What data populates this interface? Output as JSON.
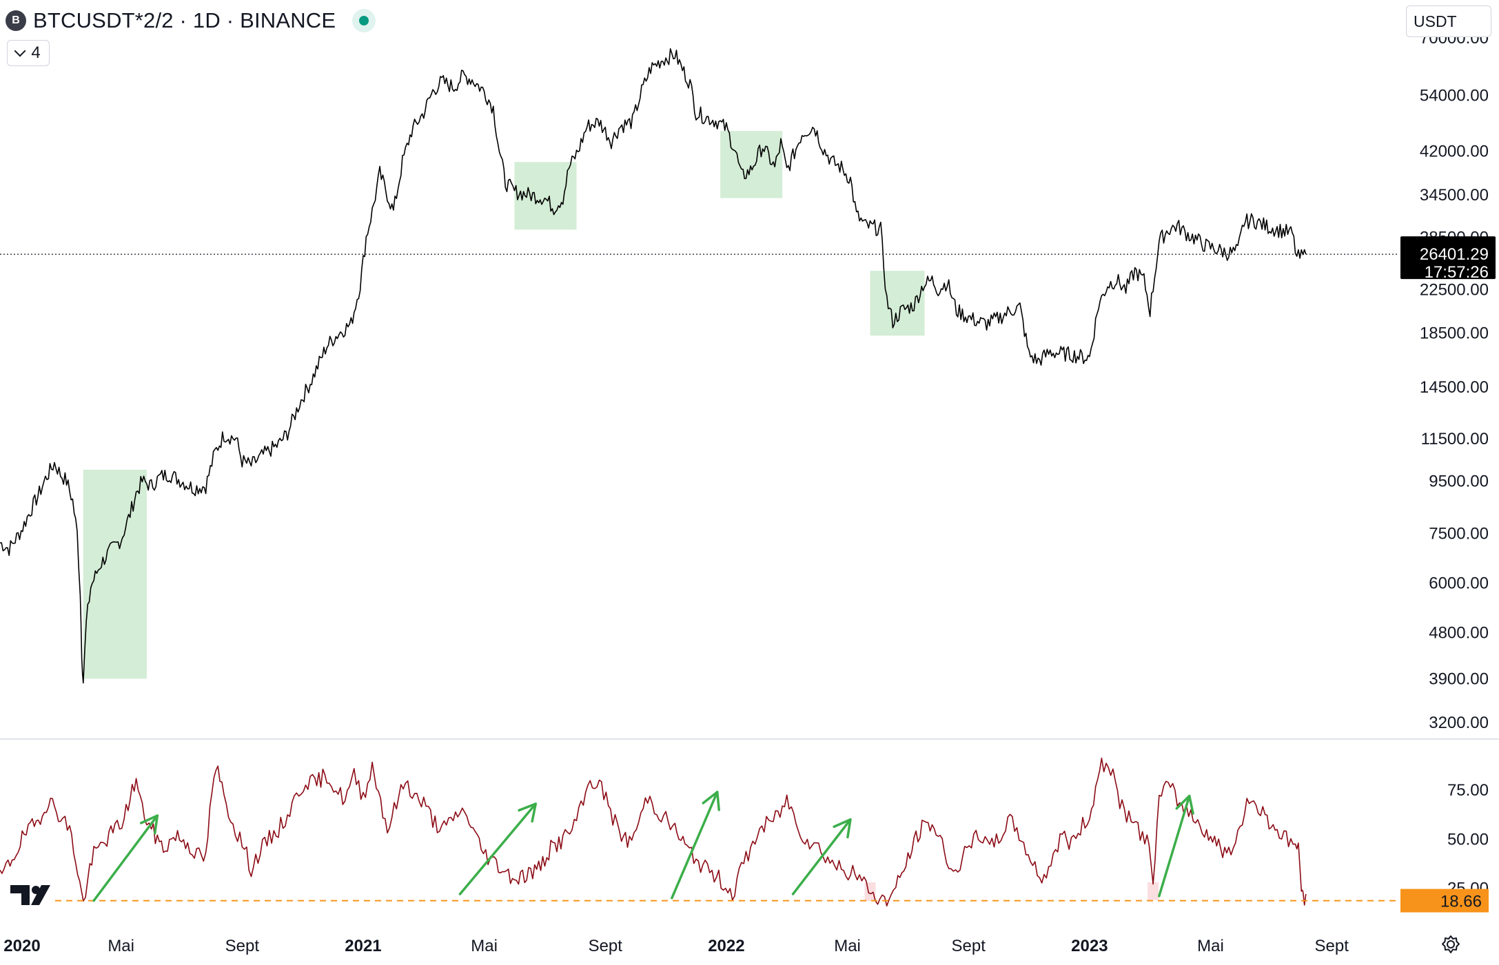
{
  "header": {
    "symbol_badge": "B",
    "title": "BTCUSDT*2/2 · 1D · BINANCE",
    "indicator_count": "4",
    "currency": "USDT"
  },
  "chart_data": [
    {
      "type": "line",
      "title": "BTCUSDT*2/2 · 1D · BINANCE",
      "scale": "log",
      "ylim": [
        3000,
        78000
      ],
      "y_ticks": [
        "70000.00",
        "54000.00",
        "42000.00",
        "34500.00",
        "28500.00",
        "22500.00",
        "18500.00",
        "14500.00",
        "11500.00",
        "9500.00",
        "7500.00",
        "6000.00",
        "4800.00",
        "3900.00",
        "3200.00"
      ],
      "x_ticks": [
        {
          "label": "2020",
          "year": true
        },
        {
          "label": "Mai",
          "year": false
        },
        {
          "label": "Sept",
          "year": false
        },
        {
          "label": "2021",
          "year": true
        },
        {
          "label": "Mai",
          "year": false
        },
        {
          "label": "Sept",
          "year": false
        },
        {
          "label": "2022",
          "year": true
        },
        {
          "label": "Mai",
          "year": false
        },
        {
          "label": "Sept",
          "year": false
        },
        {
          "label": "2023",
          "year": true
        },
        {
          "label": "Mai",
          "year": false
        },
        {
          "label": "Sept",
          "year": false
        }
      ],
      "x_tick_months": [
        0,
        4,
        8,
        12,
        16,
        20,
        24,
        28,
        32,
        36,
        40,
        44
      ],
      "x_domain_months": [
        0,
        46
      ],
      "last_price": "26401.29",
      "last_price_value": 26401.29,
      "countdown": "17:57:26",
      "price_path": [
        [
          0,
          7200
        ],
        [
          0.3,
          7000
        ],
        [
          0.7,
          7600
        ],
        [
          1,
          8300
        ],
        [
          1.3,
          9000
        ],
        [
          1.5,
          9600
        ],
        [
          1.8,
          10300
        ],
        [
          2,
          9800
        ],
        [
          2.2,
          9500
        ],
        [
          2.4,
          8700
        ],
        [
          2.55,
          7500
        ],
        [
          2.65,
          5800
        ],
        [
          2.7,
          4400
        ],
        [
          2.75,
          3850
        ],
        [
          2.85,
          5000
        ],
        [
          3,
          5900
        ],
        [
          3.3,
          6500
        ],
        [
          3.6,
          6900
        ],
        [
          4,
          7300
        ],
        [
          4.3,
          8200
        ],
        [
          4.5,
          9000
        ],
        [
          4.7,
          9500
        ],
        [
          5,
          9300
        ],
        [
          5.3,
          9700
        ],
        [
          5.6,
          9800
        ],
        [
          6,
          9500
        ],
        [
          6.4,
          9200
        ],
        [
          6.8,
          9300
        ],
        [
          7.1,
          10800
        ],
        [
          7.4,
          11700
        ],
        [
          7.8,
          11500
        ],
        [
          8,
          10400
        ],
        [
          8.3,
          10200
        ],
        [
          8.7,
          10700
        ],
        [
          9.2,
          11200
        ],
        [
          9.5,
          11800
        ],
        [
          9.9,
          13500
        ],
        [
          10.3,
          15000
        ],
        [
          10.8,
          17500
        ],
        [
          11.2,
          18500
        ],
        [
          11.6,
          19300
        ],
        [
          11.9,
          23000
        ],
        [
          12.1,
          28500
        ],
        [
          12.3,
          32000
        ],
        [
          12.55,
          38000
        ],
        [
          12.8,
          34500
        ],
        [
          13,
          32000
        ],
        [
          13.3,
          40000
        ],
        [
          13.6,
          46000
        ],
        [
          14,
          50000
        ],
        [
          14.3,
          55000
        ],
        [
          14.6,
          57500
        ],
        [
          15,
          56000
        ],
        [
          15.3,
          59000
        ],
        [
          15.6,
          58000
        ],
        [
          16,
          55000
        ],
        [
          16.3,
          51000
        ],
        [
          16.5,
          42000
        ],
        [
          16.7,
          36500
        ],
        [
          17,
          35000
        ],
        [
          17.5,
          34500
        ],
        [
          18,
          34000
        ],
        [
          18.3,
          32500
        ],
        [
          18.6,
          34000
        ],
        [
          18.8,
          39000
        ],
        [
          19.1,
          42000
        ],
        [
          19.4,
          47000
        ],
        [
          19.8,
          48000
        ],
        [
          20.2,
          44000
        ],
        [
          20.5,
          47000
        ],
        [
          20.9,
          48000
        ],
        [
          21.2,
          55000
        ],
        [
          21.5,
          61000
        ],
        [
          21.9,
          63500
        ],
        [
          22.3,
          65000
        ],
        [
          22.6,
          60000
        ],
        [
          22.8,
          57000
        ],
        [
          23,
          50000
        ],
        [
          23.3,
          49000
        ],
        [
          23.7,
          48000
        ],
        [
          24,
          46500
        ],
        [
          24.3,
          42000
        ],
        [
          24.5,
          37500
        ],
        [
          24.8,
          38500
        ],
        [
          25.2,
          43000
        ],
        [
          25.6,
          39000
        ],
        [
          25.8,
          43500
        ],
        [
          26,
          38500
        ],
        [
          26.2,
          41000
        ],
        [
          26.5,
          45500
        ],
        [
          26.9,
          47000
        ],
        [
          27.2,
          42500
        ],
        [
          27.5,
          40000
        ],
        [
          27.8,
          39000
        ],
        [
          28.1,
          37000
        ],
        [
          28.3,
          31500
        ],
        [
          28.6,
          30000
        ],
        [
          28.9,
          29800
        ],
        [
          29.1,
          29500
        ],
        [
          29.3,
          21500
        ],
        [
          29.5,
          19500
        ],
        [
          29.8,
          20500
        ],
        [
          30.2,
          21000
        ],
        [
          30.5,
          23000
        ],
        [
          30.8,
          23500
        ],
        [
          31,
          22500
        ],
        [
          31.3,
          23300
        ],
        [
          31.6,
          20500
        ],
        [
          31.9,
          20000
        ],
        [
          32.3,
          19500
        ],
        [
          32.6,
          19300
        ],
        [
          33,
          19800
        ],
        [
          33.4,
          20500
        ],
        [
          33.7,
          20800
        ],
        [
          34,
          16800
        ],
        [
          34.3,
          16300
        ],
        [
          34.7,
          17000
        ],
        [
          35,
          16900
        ],
        [
          35.4,
          16800
        ],
        [
          35.8,
          16600
        ],
        [
          36,
          16600
        ],
        [
          36.3,
          21000
        ],
        [
          36.6,
          23000
        ],
        [
          36.9,
          23500
        ],
        [
          37.2,
          22500
        ],
        [
          37.5,
          24500
        ],
        [
          37.8,
          23500
        ],
        [
          38,
          20500
        ],
        [
          38.3,
          28000
        ],
        [
          38.6,
          29500
        ],
        [
          38.9,
          30000
        ],
        [
          39.2,
          29000
        ],
        [
          39.5,
          28300
        ],
        [
          39.8,
          27500
        ],
        [
          40.2,
          27000
        ],
        [
          40.6,
          26500
        ],
        [
          40.9,
          26800
        ],
        [
          41.1,
          30500
        ],
        [
          41.4,
          30800
        ],
        [
          41.8,
          30000
        ],
        [
          42.2,
          29500
        ],
        [
          42.5,
          29200
        ],
        [
          42.7,
          29000
        ],
        [
          42.85,
          26000
        ],
        [
          43,
          26100
        ],
        [
          43.15,
          26401.29
        ]
      ],
      "highlight_zones": [
        {
          "x0": 2.75,
          "x1": 4.85,
          "y0": 3900,
          "y1": 10000,
          "color": "#d4edd6"
        },
        {
          "x0": 17,
          "x1": 19.05,
          "y0": 29500,
          "y1": 40000,
          "color": "#d4edd6"
        },
        {
          "x0": 23.8,
          "x1": 25.85,
          "y0": 34000,
          "y1": 46000,
          "color": "#d4edd6"
        },
        {
          "x0": 28.75,
          "x1": 30.55,
          "y0": 18300,
          "y1": 24500,
          "color": "#d4edd6"
        }
      ]
    },
    {
      "type": "line",
      "ylim": [
        15,
        95
      ],
      "y_ticks": [
        "75.00",
        "50.00",
        "25.00"
      ],
      "reference_line": {
        "value": 18.66,
        "label": "18.66",
        "color": "#f7931a"
      },
      "series_color": "#8b0a14",
      "rsi_path": [
        [
          0,
          30
        ],
        [
          0.4,
          40
        ],
        [
          0.8,
          52
        ],
        [
          1.2,
          58
        ],
        [
          1.6,
          70
        ],
        [
          2,
          62
        ],
        [
          2.3,
          55
        ],
        [
          2.5,
          40
        ],
        [
          2.7,
          22
        ],
        [
          2.75,
          17
        ],
        [
          2.9,
          30
        ],
        [
          3.1,
          42
        ],
        [
          3.4,
          48
        ],
        [
          3.8,
          55
        ],
        [
          4.1,
          60
        ],
        [
          4.3,
          72
        ],
        [
          4.5,
          80
        ],
        [
          4.7,
          65
        ],
        [
          5,
          55
        ],
        [
          5.4,
          45
        ],
        [
          5.8,
          52
        ],
        [
          6.2,
          48
        ],
        [
          6.5,
          42
        ],
        [
          6.8,
          40
        ],
        [
          7,
          75
        ],
        [
          7.2,
          85
        ],
        [
          7.4,
          72
        ],
        [
          7.7,
          58
        ],
        [
          8,
          48
        ],
        [
          8.3,
          35
        ],
        [
          8.6,
          44
        ],
        [
          8.9,
          50
        ],
        [
          9.2,
          55
        ],
        [
          9.5,
          62
        ],
        [
          9.8,
          72
        ],
        [
          10.1,
          80
        ],
        [
          10.4,
          78
        ],
        [
          10.8,
          83
        ],
        [
          11.1,
          75
        ],
        [
          11.4,
          70
        ],
        [
          11.7,
          82
        ],
        [
          12,
          72
        ],
        [
          12.3,
          87
        ],
        [
          12.5,
          75
        ],
        [
          12.8,
          55
        ],
        [
          13.1,
          68
        ],
        [
          13.4,
          80
        ],
        [
          13.7,
          72
        ],
        [
          14,
          68
        ],
        [
          14.3,
          60
        ],
        [
          14.6,
          55
        ],
        [
          14.9,
          58
        ],
        [
          15.2,
          65
        ],
        [
          15.5,
          60
        ],
        [
          15.9,
          45
        ],
        [
          16.2,
          40
        ],
        [
          16.6,
          35
        ],
        [
          17,
          30
        ],
        [
          17.4,
          32
        ],
        [
          17.8,
          35
        ],
        [
          18.2,
          45
        ],
        [
          18.6,
          50
        ],
        [
          18.9,
          55
        ],
        [
          19.2,
          65
        ],
        [
          19.5,
          80
        ],
        [
          19.8,
          78
        ],
        [
          20.1,
          68
        ],
        [
          20.4,
          55
        ],
        [
          20.8,
          48
        ],
        [
          21.1,
          58
        ],
        [
          21.4,
          72
        ],
        [
          21.7,
          65
        ],
        [
          22,
          60
        ],
        [
          22.3,
          55
        ],
        [
          22.7,
          45
        ],
        [
          23,
          40
        ],
        [
          23.3,
          35
        ],
        [
          23.6,
          32
        ],
        [
          23.9,
          28
        ],
        [
          24.2,
          22
        ],
        [
          24.5,
          35
        ],
        [
          24.8,
          45
        ],
        [
          25.1,
          55
        ],
        [
          25.4,
          58
        ],
        [
          25.7,
          62
        ],
        [
          26,
          70
        ],
        [
          26.3,
          60
        ],
        [
          26.6,
          50
        ],
        [
          26.9,
          48
        ],
        [
          27.2,
          43
        ],
        [
          27.5,
          38
        ],
        [
          27.8,
          35
        ],
        [
          28.1,
          33
        ],
        [
          28.4,
          30
        ],
        [
          28.7,
          25
        ],
        [
          29,
          20
        ],
        [
          29.3,
          18
        ],
        [
          29.6,
          25
        ],
        [
          30,
          40
        ],
        [
          30.4,
          55
        ],
        [
          30.8,
          58
        ],
        [
          31.2,
          45
        ],
        [
          31.5,
          32
        ],
        [
          31.8,
          40
        ],
        [
          32.1,
          48
        ],
        [
          32.4,
          52
        ],
        [
          32.7,
          45
        ],
        [
          33,
          50
        ],
        [
          33.3,
          60
        ],
        [
          33.6,
          55
        ],
        [
          33.9,
          45
        ],
        [
          34.2,
          35
        ],
        [
          34.5,
          30
        ],
        [
          34.8,
          42
        ],
        [
          35.1,
          52
        ],
        [
          35.4,
          48
        ],
        [
          35.7,
          55
        ],
        [
          36,
          62
        ],
        [
          36.2,
          75
        ],
        [
          36.4,
          90
        ],
        [
          36.7,
          85
        ],
        [
          37,
          70
        ],
        [
          37.3,
          60
        ],
        [
          37.6,
          55
        ],
        [
          37.9,
          50
        ],
        [
          38.1,
          30
        ],
        [
          38.3,
          70
        ],
        [
          38.6,
          78
        ],
        [
          38.9,
          70
        ],
        [
          39.2,
          65
        ],
        [
          39.5,
          60
        ],
        [
          39.8,
          55
        ],
        [
          40.2,
          48
        ],
        [
          40.6,
          42
        ],
        [
          40.9,
          50
        ],
        [
          41.2,
          70
        ],
        [
          41.5,
          68
        ],
        [
          41.8,
          62
        ],
        [
          42.2,
          55
        ],
        [
          42.5,
          50
        ],
        [
          42.8,
          48
        ],
        [
          42.9,
          45
        ],
        [
          43,
          25
        ],
        [
          43.05,
          19
        ],
        [
          43.15,
          22
        ]
      ],
      "arrows": [
        [
          [
            3.1,
            18.66
          ],
          [
            5.2,
            62
          ]
        ],
        [
          [
            15.2,
            22
          ],
          [
            17.7,
            68
          ]
        ],
        [
          [
            22.2,
            20
          ],
          [
            23.7,
            74
          ]
        ],
        [
          [
            26.2,
            22
          ],
          [
            28.1,
            60
          ]
        ],
        [
          [
            38.3,
            21
          ],
          [
            39.3,
            72
          ]
        ]
      ],
      "arrow_color": "#3cae4a",
      "dip_markers": [
        [
          28.75,
          18.5
        ],
        [
          38.1,
          19
        ]
      ]
    }
  ]
}
